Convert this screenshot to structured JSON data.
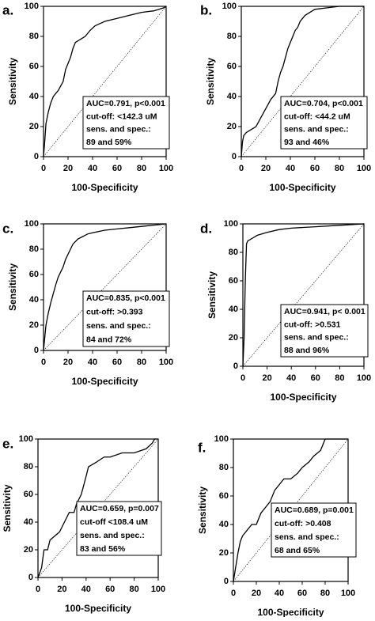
{
  "chart_data": [
    {
      "type": "line",
      "panel_label": "a.",
      "xlabel": "100-Specificity",
      "ylabel": "Sensitivity",
      "xlim": [
        0,
        100
      ],
      "ylim": [
        0,
        100
      ],
      "xticks": [
        0,
        20,
        40,
        60,
        80,
        100
      ],
      "yticks": [
        0,
        20,
        40,
        60,
        80,
        100
      ],
      "color": "#000000",
      "x": [
        0,
        1,
        2,
        4,
        6,
        8,
        12,
        16,
        18,
        20,
        22,
        24,
        26,
        30,
        34,
        38,
        42,
        50,
        60,
        70,
        80,
        90,
        98,
        100
      ],
      "values": [
        0,
        10,
        22,
        30,
        36,
        40,
        44,
        50,
        58,
        62,
        66,
        72,
        76,
        78,
        80,
        84,
        87,
        90,
        92,
        94,
        96,
        97,
        99,
        100
      ],
      "annotation": [
        "AUC=0.791, p<0.001",
        "cut-off: <142.3 uM",
        "sens. and spec.:",
        "89 and 59%"
      ]
    },
    {
      "type": "line",
      "panel_label": "b.",
      "xlabel": "100-Specificity",
      "ylabel": "Sensitivity",
      "xlim": [
        0,
        100
      ],
      "ylim": [
        0,
        100
      ],
      "xticks": [
        0,
        20,
        40,
        60,
        80,
        100
      ],
      "yticks": [
        0,
        20,
        40,
        60,
        80,
        100
      ],
      "color": "#000000",
      "x": [
        0,
        1,
        2,
        4,
        8,
        12,
        16,
        20,
        24,
        28,
        30,
        32,
        34,
        36,
        38,
        40,
        42,
        44,
        46,
        48,
        52,
        56,
        60,
        70,
        80,
        90,
        100
      ],
      "values": [
        0,
        10,
        14,
        16,
        18,
        20,
        26,
        32,
        38,
        42,
        50,
        56,
        60,
        66,
        72,
        76,
        80,
        84,
        86,
        90,
        94,
        96,
        98,
        99,
        100,
        100,
        100
      ],
      "annotation": [
        "AUC=0.704, p<0.001",
        "cut-off: <44.2 uM",
        "sens. and spec.:",
        "93 and 46%"
      ]
    },
    {
      "type": "line",
      "panel_label": "c.",
      "xlabel": "100-Specificity",
      "ylabel": "Sensitivity",
      "xlim": [
        0,
        100
      ],
      "ylim": [
        0,
        100
      ],
      "xticks": [
        0,
        20,
        40,
        60,
        80,
        100
      ],
      "yticks": [
        0,
        20,
        40,
        60,
        80,
        100
      ],
      "color": "#000000",
      "x": [
        0,
        1,
        2,
        4,
        6,
        8,
        10,
        12,
        14,
        16,
        18,
        20,
        22,
        24,
        28,
        32,
        36,
        40,
        50,
        60,
        70,
        80,
        90,
        100
      ],
      "values": [
        0,
        10,
        20,
        30,
        38,
        45,
        52,
        58,
        62,
        66,
        72,
        76,
        80,
        84,
        88,
        90,
        92,
        93,
        95,
        96,
        97,
        98,
        99,
        100
      ],
      "annotation": [
        "AUC=0.835, p<0.001",
        "cut-off: >0.393",
        "sens. and spec.:",
        "84 and 72%"
      ]
    },
    {
      "type": "line",
      "panel_label": "d.",
      "xlabel": "100-Specificity",
      "ylabel": "Sensitivity",
      "xlim": [
        0,
        100
      ],
      "ylim": [
        0,
        100
      ],
      "xticks": [
        0,
        20,
        40,
        60,
        80,
        100
      ],
      "yticks": [
        0,
        20,
        40,
        60,
        80,
        100
      ],
      "color": "#000000",
      "x": [
        0,
        1,
        2,
        3,
        4,
        6,
        8,
        12,
        20,
        30,
        40,
        60,
        80,
        100
      ],
      "values": [
        0,
        20,
        60,
        86,
        88,
        89,
        90,
        92,
        94,
        96,
        97,
        98,
        99,
        100
      ],
      "annotation": [
        "AUC=0.941, p< 0.001",
        "cut-off: >0.531",
        "sens. and spec.:",
        "88 and 96%"
      ]
    },
    {
      "type": "line",
      "panel_label": "e.",
      "xlabel": "100-Specificity",
      "ylabel": "Sensitivity",
      "xlim": [
        0,
        100
      ],
      "ylim": [
        0,
        100
      ],
      "xticks": [
        0,
        20,
        40,
        60,
        80,
        100
      ],
      "yticks": [
        0,
        20,
        40,
        60,
        80,
        100
      ],
      "color": "#000000",
      "x": [
        0,
        3,
        5,
        8,
        10,
        14,
        18,
        22,
        26,
        30,
        32,
        36,
        40,
        42,
        48,
        55,
        60,
        70,
        80,
        90,
        95,
        97,
        100
      ],
      "values": [
        0,
        7,
        20,
        20,
        27,
        30,
        33,
        40,
        47,
        47,
        53,
        60,
        73,
        80,
        83,
        87,
        87,
        90,
        90,
        93,
        97,
        100,
        100
      ],
      "annotation": [
        "AUC=0.659, p=0.007",
        "cut-off <108.4 uM",
        "sens. and spec.:",
        "83 and 56%"
      ]
    },
    {
      "type": "line",
      "panel_label": "f.",
      "xlabel": "100-Specificity",
      "ylabel": "Sensitivity",
      "xlim": [
        0,
        100
      ],
      "ylim": [
        0,
        100
      ],
      "xticks": [
        0,
        20,
        40,
        60,
        80,
        100
      ],
      "yticks": [
        0,
        20,
        40,
        60,
        80,
        100
      ],
      "color": "#000000",
      "x": [
        0,
        2,
        4,
        6,
        8,
        12,
        16,
        20,
        24,
        28,
        32,
        36,
        40,
        44,
        50,
        56,
        60,
        66,
        70,
        76,
        80,
        84,
        90,
        100
      ],
      "values": [
        0,
        10,
        20,
        28,
        32,
        36,
        40,
        40,
        48,
        52,
        56,
        64,
        68,
        72,
        72,
        76,
        80,
        84,
        88,
        92,
        100,
        100,
        100,
        100
      ],
      "annotation": [
        "AUC=0.689, p=0.001",
        "cut-off: >0.408",
        "sens. and spec.:",
        "68 and 65%"
      ]
    }
  ]
}
